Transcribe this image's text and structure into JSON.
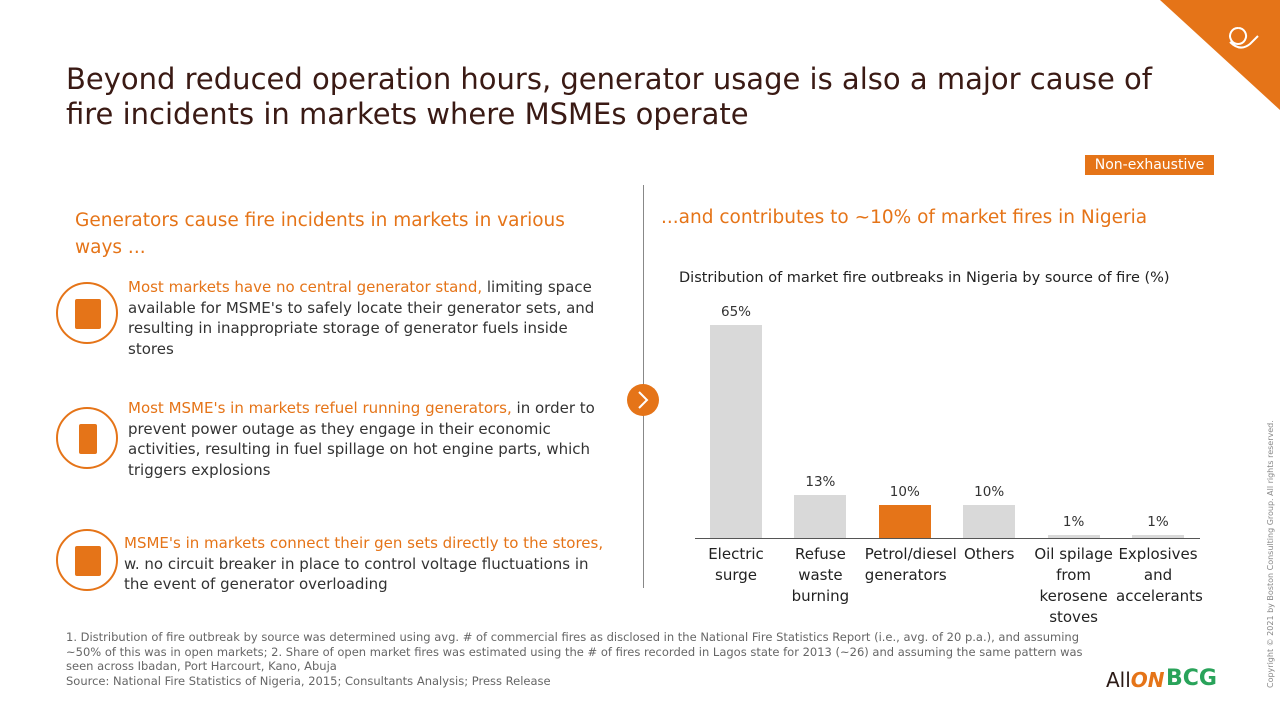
{
  "title": "Beyond reduced operation hours, generator usage is also a major cause of fire incidents in markets where MSMEs operate",
  "tag": "Non-exhaustive",
  "left_heading": "Generators cause fire incidents in markets in various ways ...",
  "items": [
    {
      "highlight": "Most markets have no central generator stand,",
      "text": "limiting space available for MSME's to safely locate their generator sets, and resulting in inappropriate storage of generator fuels inside stores"
    },
    {
      "highlight": "Most MSME's in markets refuel running generators,",
      "text": "in order to prevent power outage as they engage in their economic activities, resulting in fuel spillage on hot engine parts, which triggers explosions"
    },
    {
      "highlight": "MSME's in markets connect their gen sets directly to the stores,",
      "text": "w. no circuit breaker in place to control voltage fluctuations in the event of generator overloading"
    }
  ],
  "right_heading": "...and contributes to ~10% of market fires in Nigeria",
  "chart_data": {
    "type": "bar",
    "title": "Distribution of market fire outbreaks in Nigeria by source of fire (%)",
    "categories": [
      "Electric surge",
      "Refuse waste burning",
      "Petrol/diesel generators",
      "Others",
      "Oil spilage from kerosene stoves",
      "Explosives and accelerants"
    ],
    "values": [
      65,
      13,
      10,
      10,
      1,
      1
    ],
    "value_labels": [
      "65%",
      "13%",
      "10%",
      "10%",
      "1%",
      "1%"
    ],
    "colors": [
      "#d9d9d9",
      "#d9d9d9",
      "#e57418",
      "#d9d9d9",
      "#d9d9d9",
      "#d9d9d9"
    ]
  },
  "footnotes": [
    "1. Distribution of fire outbreak by source was determined using avg. # of commercial fires as disclosed in the National Fire Statistics Report (i.e., avg. of 20 p.a.), and assuming ~50% of this was in open markets; 2. Share of open market fires was estimated using the # of fires recorded in Lagos state for 2013 (~26) and assuming the same pattern was seen across Ibadan, Port Harcourt, Kano, Abuja",
    "Source: National Fire Statistics of Nigeria, 2015; Consultants Analysis; Press Release"
  ],
  "copyright": "Copyright © 2021 by Boston Consulting Group. All rights reserved.",
  "logos": {
    "allon_a": "All",
    "allon_b": "ON",
    "bcg": "BCG"
  }
}
